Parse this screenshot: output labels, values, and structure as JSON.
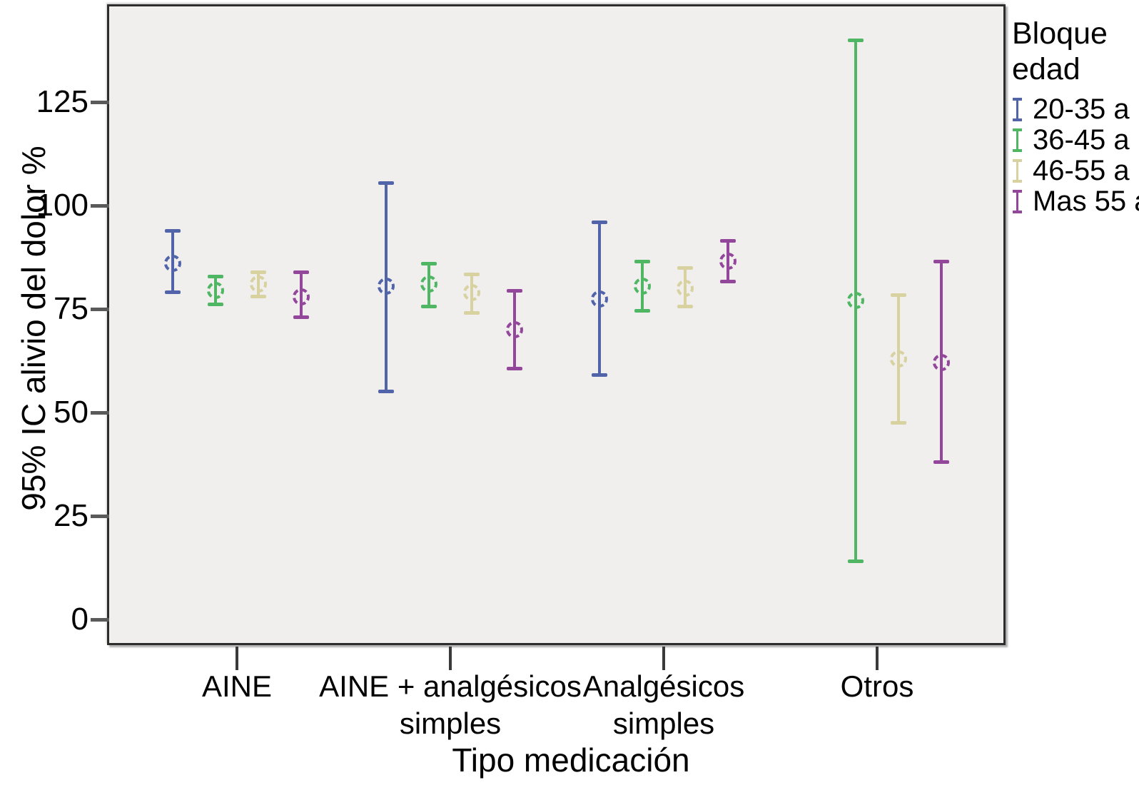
{
  "chart_data": {
    "type": "errorbar",
    "title": "",
    "xlabel": "Tipo medicación",
    "ylabel": "95% IC alivio del dolor %",
    "categories": [
      "AINE",
      "AINE + analgésicos simples",
      "Analgésicos simples",
      "Otros"
    ],
    "category_label_lines": [
      [
        "AINE"
      ],
      [
        "AINE + analgésicos",
        "simples"
      ],
      [
        "Analgésicos",
        "simples"
      ],
      [
        "Otros"
      ]
    ],
    "y_ticks": [
      0,
      25,
      50,
      75,
      100,
      125
    ],
    "ylim": [
      -6,
      148
    ],
    "grid": false,
    "plot_bg": "#f0efee",
    "frame_color": "#2d2d2d",
    "legend": {
      "position": "top-right-outside",
      "title": "Bloque edad",
      "title_lines": [
        "Bloque",
        "edad"
      ]
    },
    "series": [
      {
        "name": "20-35 a",
        "color": "#5164aa",
        "points": [
          {
            "mean": 86,
            "lo": 79,
            "hi": 94
          },
          {
            "mean": 80.5,
            "lo": 55,
            "hi": 105.5
          },
          {
            "mean": 77.5,
            "lo": 59,
            "hi": 96
          },
          null
        ]
      },
      {
        "name": "36-45 a",
        "color": "#4fb763",
        "points": [
          {
            "mean": 79.5,
            "lo": 76,
            "hi": 83
          },
          {
            "mean": 81,
            "lo": 75.5,
            "hi": 86
          },
          {
            "mean": 80.5,
            "lo": 74.5,
            "hi": 86.5
          },
          {
            "mean": 77,
            "lo": 14,
            "hi": 140
          }
        ]
      },
      {
        "name": "46-55 a",
        "color": "#d8d1a0",
        "points": [
          {
            "mean": 81,
            "lo": 78,
            "hi": 84
          },
          {
            "mean": 79,
            "lo": 74,
            "hi": 83.5
          },
          {
            "mean": 80,
            "lo": 75.5,
            "hi": 85
          },
          {
            "mean": 63,
            "lo": 47.5,
            "hi": 78.5
          }
        ]
      },
      {
        "name": "Mas 55 a",
        "color": "#93479b",
        "points": [
          {
            "mean": 78,
            "lo": 73,
            "hi": 84
          },
          {
            "mean": 70,
            "lo": 60.5,
            "hi": 79.5
          },
          {
            "mean": 86.5,
            "lo": 81.5,
            "hi": 91.5
          },
          {
            "mean": 62,
            "lo": 38,
            "hi": 86.5
          }
        ]
      }
    ]
  }
}
